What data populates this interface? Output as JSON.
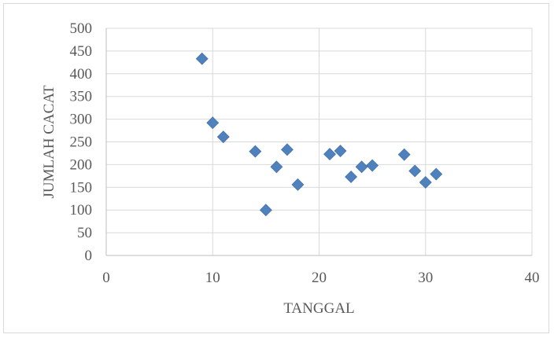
{
  "chart_data": {
    "type": "scatter",
    "title": "",
    "xlabel": "TANGGAL",
    "ylabel": "JUMLAH CACAT",
    "xlim": [
      0,
      40
    ],
    "ylim": [
      0,
      500
    ],
    "xticks": [
      0,
      10,
      20,
      30,
      40
    ],
    "yticks": [
      0,
      50,
      100,
      150,
      200,
      250,
      300,
      350,
      400,
      450,
      500
    ],
    "grid": true,
    "legend": "none",
    "marker": "diamond",
    "color": "#4f81bd",
    "points": [
      {
        "x": 9,
        "y": 433
      },
      {
        "x": 10,
        "y": 292
      },
      {
        "x": 11,
        "y": 261
      },
      {
        "x": 14,
        "y": 229
      },
      {
        "x": 15,
        "y": 100
      },
      {
        "x": 16,
        "y": 195
      },
      {
        "x": 17,
        "y": 233
      },
      {
        "x": 18,
        "y": 156
      },
      {
        "x": 21,
        "y": 223
      },
      {
        "x": 22,
        "y": 230
      },
      {
        "x": 23,
        "y": 173
      },
      {
        "x": 24,
        "y": 195
      },
      {
        "x": 25,
        "y": 198
      },
      {
        "x": 28,
        "y": 222
      },
      {
        "x": 29,
        "y": 186
      },
      {
        "x": 30,
        "y": 161
      },
      {
        "x": 31,
        "y": 179
      }
    ]
  }
}
